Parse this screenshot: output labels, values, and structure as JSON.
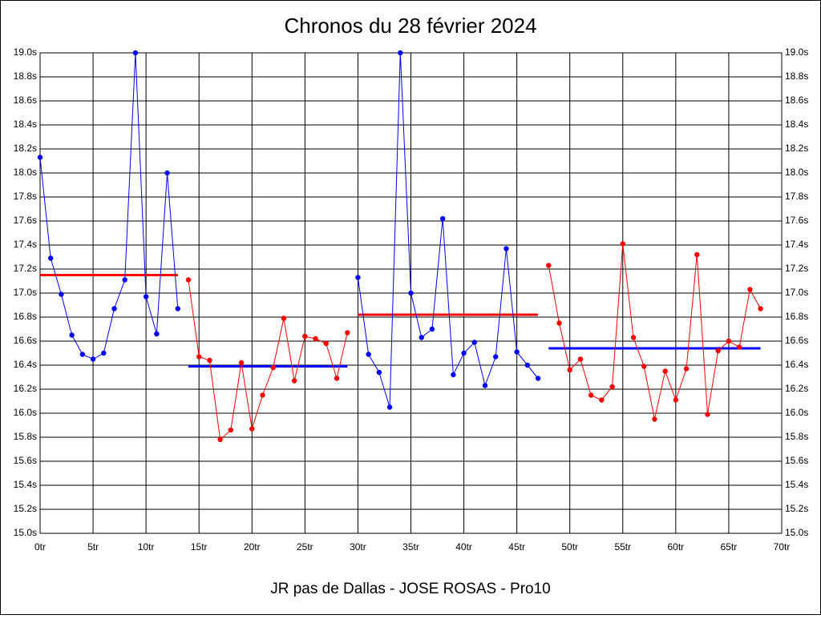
{
  "chart_data": {
    "type": "line",
    "title": "Chronos du 28 février 2024",
    "x_label": "JR pas de Dallas - JOSE ROSAS - Pro10",
    "grid": true,
    "xlim": [
      0,
      70
    ],
    "ylim": [
      15.0,
      19.0
    ],
    "xticks": [
      {
        "value": 0,
        "label": "0tr"
      },
      {
        "value": 5,
        "label": "5tr"
      },
      {
        "value": 10,
        "label": "10tr"
      },
      {
        "value": 15,
        "label": "15tr"
      },
      {
        "value": 20,
        "label": "20tr"
      },
      {
        "value": 25,
        "label": "25tr"
      },
      {
        "value": 30,
        "label": "30tr"
      },
      {
        "value": 35,
        "label": "35tr"
      },
      {
        "value": 40,
        "label": "40tr"
      },
      {
        "value": 45,
        "label": "45tr"
      },
      {
        "value": 50,
        "label": "50tr"
      },
      {
        "value": 55,
        "label": "55tr"
      },
      {
        "value": 60,
        "label": "60tr"
      },
      {
        "value": 65,
        "label": "65tr"
      },
      {
        "value": 70,
        "label": "70tr"
      }
    ],
    "yticks": [
      {
        "value": 15.0,
        "label": "15.0s"
      },
      {
        "value": 15.2,
        "label": "15.2s"
      },
      {
        "value": 15.4,
        "label": "15.4s"
      },
      {
        "value": 15.6,
        "label": "15.6s"
      },
      {
        "value": 15.8,
        "label": "15.8s"
      },
      {
        "value": 16.0,
        "label": "16.0s"
      },
      {
        "value": 16.2,
        "label": "16.2s"
      },
      {
        "value": 16.4,
        "label": "16.4s"
      },
      {
        "value": 16.6,
        "label": "16.6s"
      },
      {
        "value": 16.8,
        "label": "16.8s"
      },
      {
        "value": 17.0,
        "label": "17.0s"
      },
      {
        "value": 17.2,
        "label": "17.2s"
      },
      {
        "value": 17.4,
        "label": "17.4s"
      },
      {
        "value": 17.6,
        "label": "17.6s"
      },
      {
        "value": 17.8,
        "label": "17.8s"
      },
      {
        "value": 18.0,
        "label": "18.0s"
      },
      {
        "value": 18.2,
        "label": "18.2s"
      },
      {
        "value": 18.4,
        "label": "18.4s"
      },
      {
        "value": 18.6,
        "label": "18.6s"
      },
      {
        "value": 18.8,
        "label": "18.8s"
      },
      {
        "value": 19.0,
        "label": "19.0s"
      }
    ],
    "series": [
      {
        "color": "#0000ff",
        "x": [
          0,
          1,
          2,
          3,
          4,
          5,
          6,
          7,
          8,
          9,
          10,
          11,
          12,
          13
        ],
        "values": [
          18.13,
          17.29,
          16.99,
          16.65,
          16.49,
          16.45,
          16.5,
          16.87,
          17.11,
          19.0,
          16.97,
          16.66,
          18.0,
          16.87
        ]
      },
      {
        "color": "#ff0000",
        "x": [
          14,
          15,
          16,
          17,
          18,
          19,
          20,
          21,
          22,
          23,
          24,
          25,
          26,
          27,
          28,
          29
        ],
        "values": [
          17.11,
          16.47,
          16.44,
          15.78,
          15.86,
          16.42,
          15.87,
          16.15,
          16.38,
          16.79,
          16.27,
          16.64,
          16.62,
          16.58,
          16.29,
          16.67
        ]
      },
      {
        "color": "#0000ff",
        "x": [
          30,
          31,
          32,
          33,
          34,
          35,
          36,
          37,
          38,
          39,
          40,
          41,
          42,
          43,
          44,
          45,
          46,
          47
        ],
        "values": [
          17.13,
          16.49,
          16.34,
          16.05,
          19.0,
          17.0,
          16.63,
          16.7,
          17.62,
          16.32,
          16.5,
          16.59,
          16.23,
          16.47,
          17.37,
          16.51,
          16.4,
          16.29
        ]
      },
      {
        "color": "#ff0000",
        "x": [
          48,
          49,
          50,
          51,
          52,
          53,
          54,
          55,
          56,
          57,
          58,
          59,
          60,
          61,
          62,
          63,
          64,
          65,
          66,
          67,
          68
        ],
        "values": [
          17.23,
          16.75,
          16.36,
          16.45,
          16.15,
          16.11,
          16.22,
          17.41,
          16.63,
          16.39,
          15.95,
          16.35,
          16.11,
          16.37,
          17.32,
          15.99,
          16.52,
          16.6,
          16.55,
          17.03,
          16.87
        ]
      }
    ],
    "averages": [
      {
        "color": "#ff0000",
        "x": [
          0,
          13
        ],
        "value": 17.15
      },
      {
        "color": "#0000ff",
        "x": [
          14,
          29
        ],
        "value": 16.39
      },
      {
        "color": "#ff0000",
        "x": [
          30,
          47
        ],
        "value": 16.82
      },
      {
        "color": "#0000ff",
        "x": [
          48,
          68
        ],
        "value": 16.54
      }
    ]
  }
}
